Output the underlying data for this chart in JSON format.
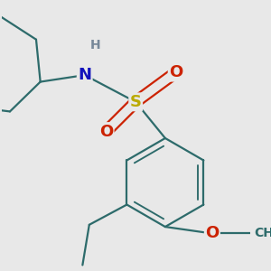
{
  "background_color": "#e8e8e8",
  "bond_color": "#2d6b6b",
  "bond_width": 1.6,
  "atom_colors": {
    "N": "#1111bb",
    "H": "#778899",
    "S": "#bbaa00",
    "O": "#cc2200",
    "C": "#2d6b6b"
  },
  "font_size_atoms": 13,
  "font_size_H": 10,
  "font_size_methyl": 10
}
